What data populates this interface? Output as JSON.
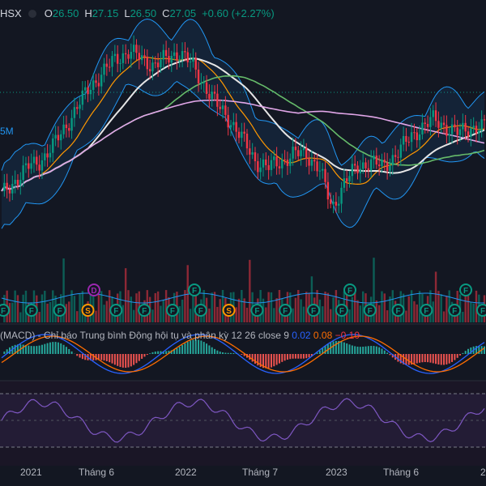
{
  "header": {
    "symbol": "HSX",
    "open_key": "O",
    "open": "26.50",
    "high_key": "H",
    "high": "27.15",
    "low_key": "L",
    "low": "26.50",
    "close_key": "C",
    "close": "27.05",
    "change": "+0.60 (+2.27%)"
  },
  "volume_side_label": "5M",
  "macd_label": {
    "title": "(MACD) - Chỉ báo Trung bình Động hội tụ và phân kỳ",
    "params": "12 26 close 9",
    "v1": "0.02",
    "v2": "0.08",
    "v3": "−0.10"
  },
  "chart_data": {
    "type": "candlestick",
    "x_ticks": [
      "2021",
      "Tháng 6",
      "2022",
      "Tháng 7",
      "2023",
      "Tháng 6",
      "2"
    ],
    "ohlc": {
      "open": 26.5,
      "high": 27.15,
      "low": 26.5,
      "close": 27.05
    },
    "price_series": [
      17,
      19,
      21,
      22,
      24,
      27,
      30,
      33,
      35,
      37,
      38,
      37,
      36,
      37,
      38,
      36,
      33,
      30,
      28,
      25,
      22,
      21,
      22,
      23,
      23,
      21,
      15,
      19,
      21,
      22,
      21,
      23,
      25,
      27,
      28,
      27,
      26,
      27,
      27
    ],
    "event_markers": [
      "F",
      "F",
      "F",
      "S",
      "F",
      "F",
      "F",
      "F",
      "S",
      "F",
      "F",
      "F",
      "F",
      "F",
      "F",
      "F",
      "F",
      "F"
    ],
    "upper_markers": [
      "D",
      "F",
      "F",
      "F"
    ],
    "colors": {
      "up": "#089981",
      "down": "#f23645",
      "bb": "#2196f3",
      "ma_white": "#e6e6e6",
      "ma_orange": "#ff9800",
      "ma_green": "#66bb6a",
      "ma_pink": "#e1a6e8",
      "rsi": "#7e57c2"
    }
  }
}
